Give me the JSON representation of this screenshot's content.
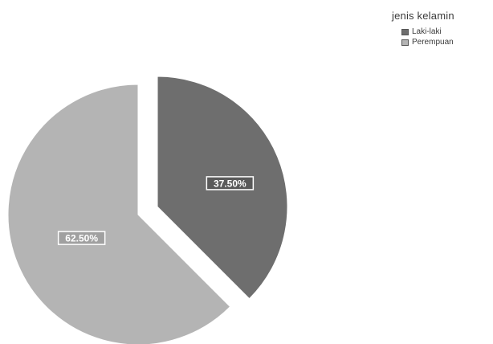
{
  "chart_data": {
    "type": "pie",
    "legend_title": "jenis kelamin",
    "legend_position": "top-right",
    "slices": [
      {
        "label": "Laki-laki",
        "value": 37.5,
        "display": "37.50%",
        "color": "#6e6e6e",
        "exploded": true
      },
      {
        "label": "Perempuan",
        "value": 62.5,
        "display": "62.50%",
        "color": "#b4b4b4",
        "exploded": false
      }
    ],
    "start_angle_deg": 0,
    "direction": "clockwise"
  }
}
